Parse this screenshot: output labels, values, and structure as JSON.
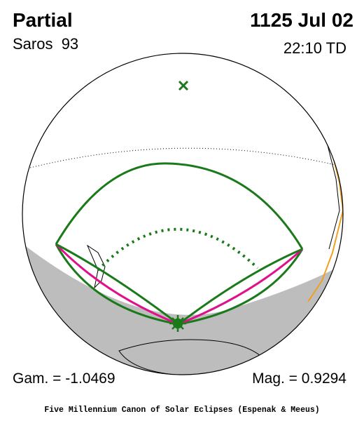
{
  "header": {
    "title": "Partial",
    "saros": "Saros  93",
    "date": "1125 Jul 02",
    "time": "22:10 TD"
  },
  "footer": {
    "gamma": "Gam. = -1.0469",
    "magnitude": "Mag. = 0.9294",
    "credit": "Five Millennium Canon of Solar Eclipses (Espenak & Meeus)"
  }
}
